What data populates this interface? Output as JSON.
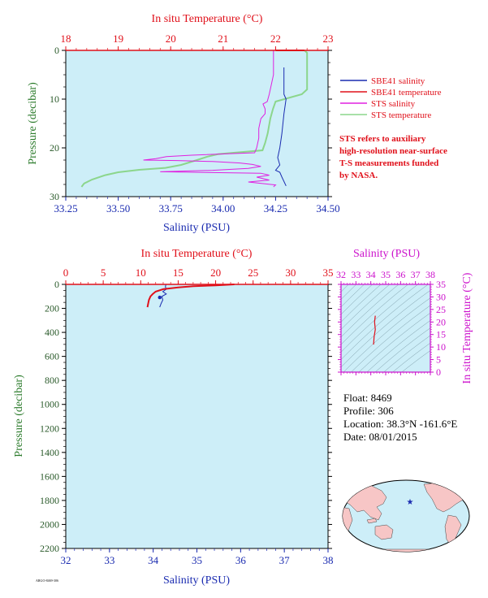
{
  "colors": {
    "plot_bg": "#cdeef8",
    "salinity": "#1a2bb0",
    "temperature": "#e0101a",
    "sts_salinity": "#e020e0",
    "sts_temperature": "#8cd68c",
    "pressure_axis": "#2a5a2a",
    "ts_axis": "#cc11cc"
  },
  "chart_data": [
    {
      "id": "near-surface",
      "type": "line",
      "top_axis_label": "In situ Temperature (°C)",
      "top_ticks": [
        "18",
        "19",
        "20",
        "21",
        "22",
        "23"
      ],
      "xlim_temperature": [
        18,
        23
      ],
      "bottom_axis_label": "Salinity (PSU)",
      "bottom_ticks": [
        "33.25",
        "33.50",
        "33.75",
        "34.00",
        "34.25",
        "34.50"
      ],
      "xlim_salinity": [
        33.25,
        34.5
      ],
      "ylabel": "Pressure (decibar)",
      "y_ticks": [
        "0",
        "10",
        "20",
        "30"
      ],
      "ylim": [
        0,
        30
      ],
      "legend": [
        {
          "name": "SBE41 salinity",
          "color": "#1a2bb0"
        },
        {
          "name": "SBE41 temperature",
          "color": "#e0101a"
        },
        {
          "name": "STS salinity",
          "color": "#e020e0"
        },
        {
          "name": "STS temperature",
          "color": "#8cd68c"
        }
      ],
      "note": [
        "STS refers to auxiliary",
        "high-resolution near-surface",
        "T-S measurements funded",
        "by NASA."
      ],
      "series": [
        {
          "name": "SBE41 salinity",
          "axis": "salinity",
          "points": [
            [
              34.29,
              3.5
            ],
            [
              34.29,
              9
            ],
            [
              34.3,
              10
            ],
            [
              34.29,
              13
            ],
            [
              34.28,
              17
            ],
            [
              34.27,
              20
            ],
            [
              34.26,
              22
            ],
            [
              34.27,
              23.5
            ],
            [
              34.25,
              24.6
            ],
            [
              34.27,
              25
            ],
            [
              34.28,
              26
            ],
            [
              34.3,
              27.8
            ]
          ]
        },
        {
          "name": "SBE41 temperature",
          "axis": "temperature",
          "points": [
            [
              22.0,
              0
            ],
            [
              22.55,
              0
            ]
          ]
        },
        {
          "name": "STS salinity",
          "axis": "salinity",
          "points": [
            [
              34.24,
              0
            ],
            [
              34.24,
              5
            ],
            [
              34.23,
              7
            ],
            [
              34.22,
              9
            ],
            [
              34.21,
              10.5
            ],
            [
              34.19,
              11
            ],
            [
              34.2,
              12
            ],
            [
              34.2,
              13
            ],
            [
              34.18,
              14
            ],
            [
              34.17,
              16
            ],
            [
              34.17,
              18
            ],
            [
              34.16,
              20
            ],
            [
              34.15,
              21
            ],
            [
              33.85,
              21.5
            ],
            [
              33.73,
              21.8
            ],
            [
              33.68,
              22.2
            ],
            [
              33.62,
              22.5
            ],
            [
              33.78,
              22.6
            ],
            [
              33.95,
              22.8
            ],
            [
              34.08,
              23.1
            ],
            [
              34.14,
              23.4
            ],
            [
              34.18,
              23.8
            ],
            [
              34.12,
              24.2
            ],
            [
              33.95,
              24.6
            ],
            [
              33.7,
              24.9
            ],
            [
              34.18,
              25.2
            ],
            [
              34.22,
              25.6
            ],
            [
              34.16,
              26
            ],
            [
              34.22,
              26.6
            ],
            [
              34.12,
              27
            ],
            [
              34.25,
              27.6
            ],
            [
              34.24,
              28
            ]
          ]
        },
        {
          "name": "STS temperature",
          "axis": "temperature",
          "points": [
            [
              22.55,
              0
            ],
            [
              22.6,
              0.5
            ],
            [
              22.6,
              8
            ],
            [
              22.5,
              9
            ],
            [
              22.0,
              10.5
            ],
            [
              21.95,
              12
            ],
            [
              21.9,
              14
            ],
            [
              21.85,
              17
            ],
            [
              21.8,
              19
            ],
            [
              21.75,
              20.5
            ],
            [
              21.2,
              21
            ],
            [
              20.9,
              21.3
            ],
            [
              20.7,
              21.8
            ],
            [
              20.5,
              22.5
            ],
            [
              20.2,
              23.5
            ],
            [
              19.9,
              24.1
            ],
            [
              19.4,
              24.5
            ],
            [
              19.0,
              25.0
            ],
            [
              18.75,
              25.6
            ],
            [
              18.5,
              26.5
            ],
            [
              18.35,
              27.3
            ],
            [
              18.3,
              28
            ]
          ]
        }
      ]
    },
    {
      "id": "full-profile",
      "type": "line",
      "top_axis_label": "In situ Temperature (°C)",
      "top_ticks": [
        "0",
        "5",
        "10",
        "15",
        "20",
        "25",
        "30",
        "35"
      ],
      "xlim_temperature": [
        0,
        35
      ],
      "bottom_axis_label": "Salinity (PSU)",
      "bottom_ticks": [
        "32",
        "33",
        "34",
        "35",
        "36",
        "37",
        "38"
      ],
      "xlim_salinity": [
        32,
        38
      ],
      "ylabel": "Pressure (decibar)",
      "y_ticks": [
        "0",
        "200",
        "400",
        "600",
        "800",
        "1000",
        "1200",
        "1400",
        "1600",
        "1800",
        "2000",
        "2200"
      ],
      "ylim": [
        0,
        2200
      ],
      "series": [
        {
          "name": "SBE41 salinity",
          "axis": "salinity",
          "points": [
            [
              34.29,
              0
            ],
            [
              34.28,
              20
            ],
            [
              34.3,
              40
            ],
            [
              34.22,
              60
            ],
            [
              34.3,
              80
            ],
            [
              34.2,
              100
            ],
            [
              34.22,
              130
            ],
            [
              34.18,
              160
            ],
            [
              34.15,
              190
            ]
          ]
        },
        {
          "name": "SBE41 temperature",
          "axis": "temperature",
          "points": [
            [
              22.5,
              0
            ],
            [
              20,
              8
            ],
            [
              17,
              15
            ],
            [
              15,
              25
            ],
            [
              13,
              40
            ],
            [
              12,
              60
            ],
            [
              11.6,
              80
            ],
            [
              11.3,
              100
            ],
            [
              11.1,
              130
            ],
            [
              11.0,
              160
            ],
            [
              10.9,
              190
            ]
          ]
        }
      ]
    },
    {
      "id": "ts-diagram",
      "type": "line",
      "top_axis_label": "Salinity (PSU)",
      "top_ticks": [
        "32",
        "33",
        "34",
        "35",
        "36",
        "37",
        "38"
      ],
      "xlim": [
        32,
        38
      ],
      "ylabel": "In situ Temperature (°C)",
      "y_ticks": [
        "0",
        "5",
        "10",
        "15",
        "20",
        "25",
        "30",
        "35"
      ],
      "ylim": [
        0,
        35
      ],
      "series": [
        {
          "name": "T-S profile",
          "points": [
            [
              34.3,
              22.5
            ],
            [
              34.25,
              20
            ],
            [
              34.3,
              17
            ],
            [
              34.22,
              14
            ],
            [
              34.2,
              12
            ],
            [
              34.18,
              11
            ]
          ]
        }
      ]
    }
  ],
  "info": {
    "float": "Float:  8469",
    "profile": "Profile:  306",
    "location": "Location:  38.3°N  -161.6°E",
    "date": "Date:  08/01/2015"
  },
  "footer_code": "ARGO-8469-306"
}
